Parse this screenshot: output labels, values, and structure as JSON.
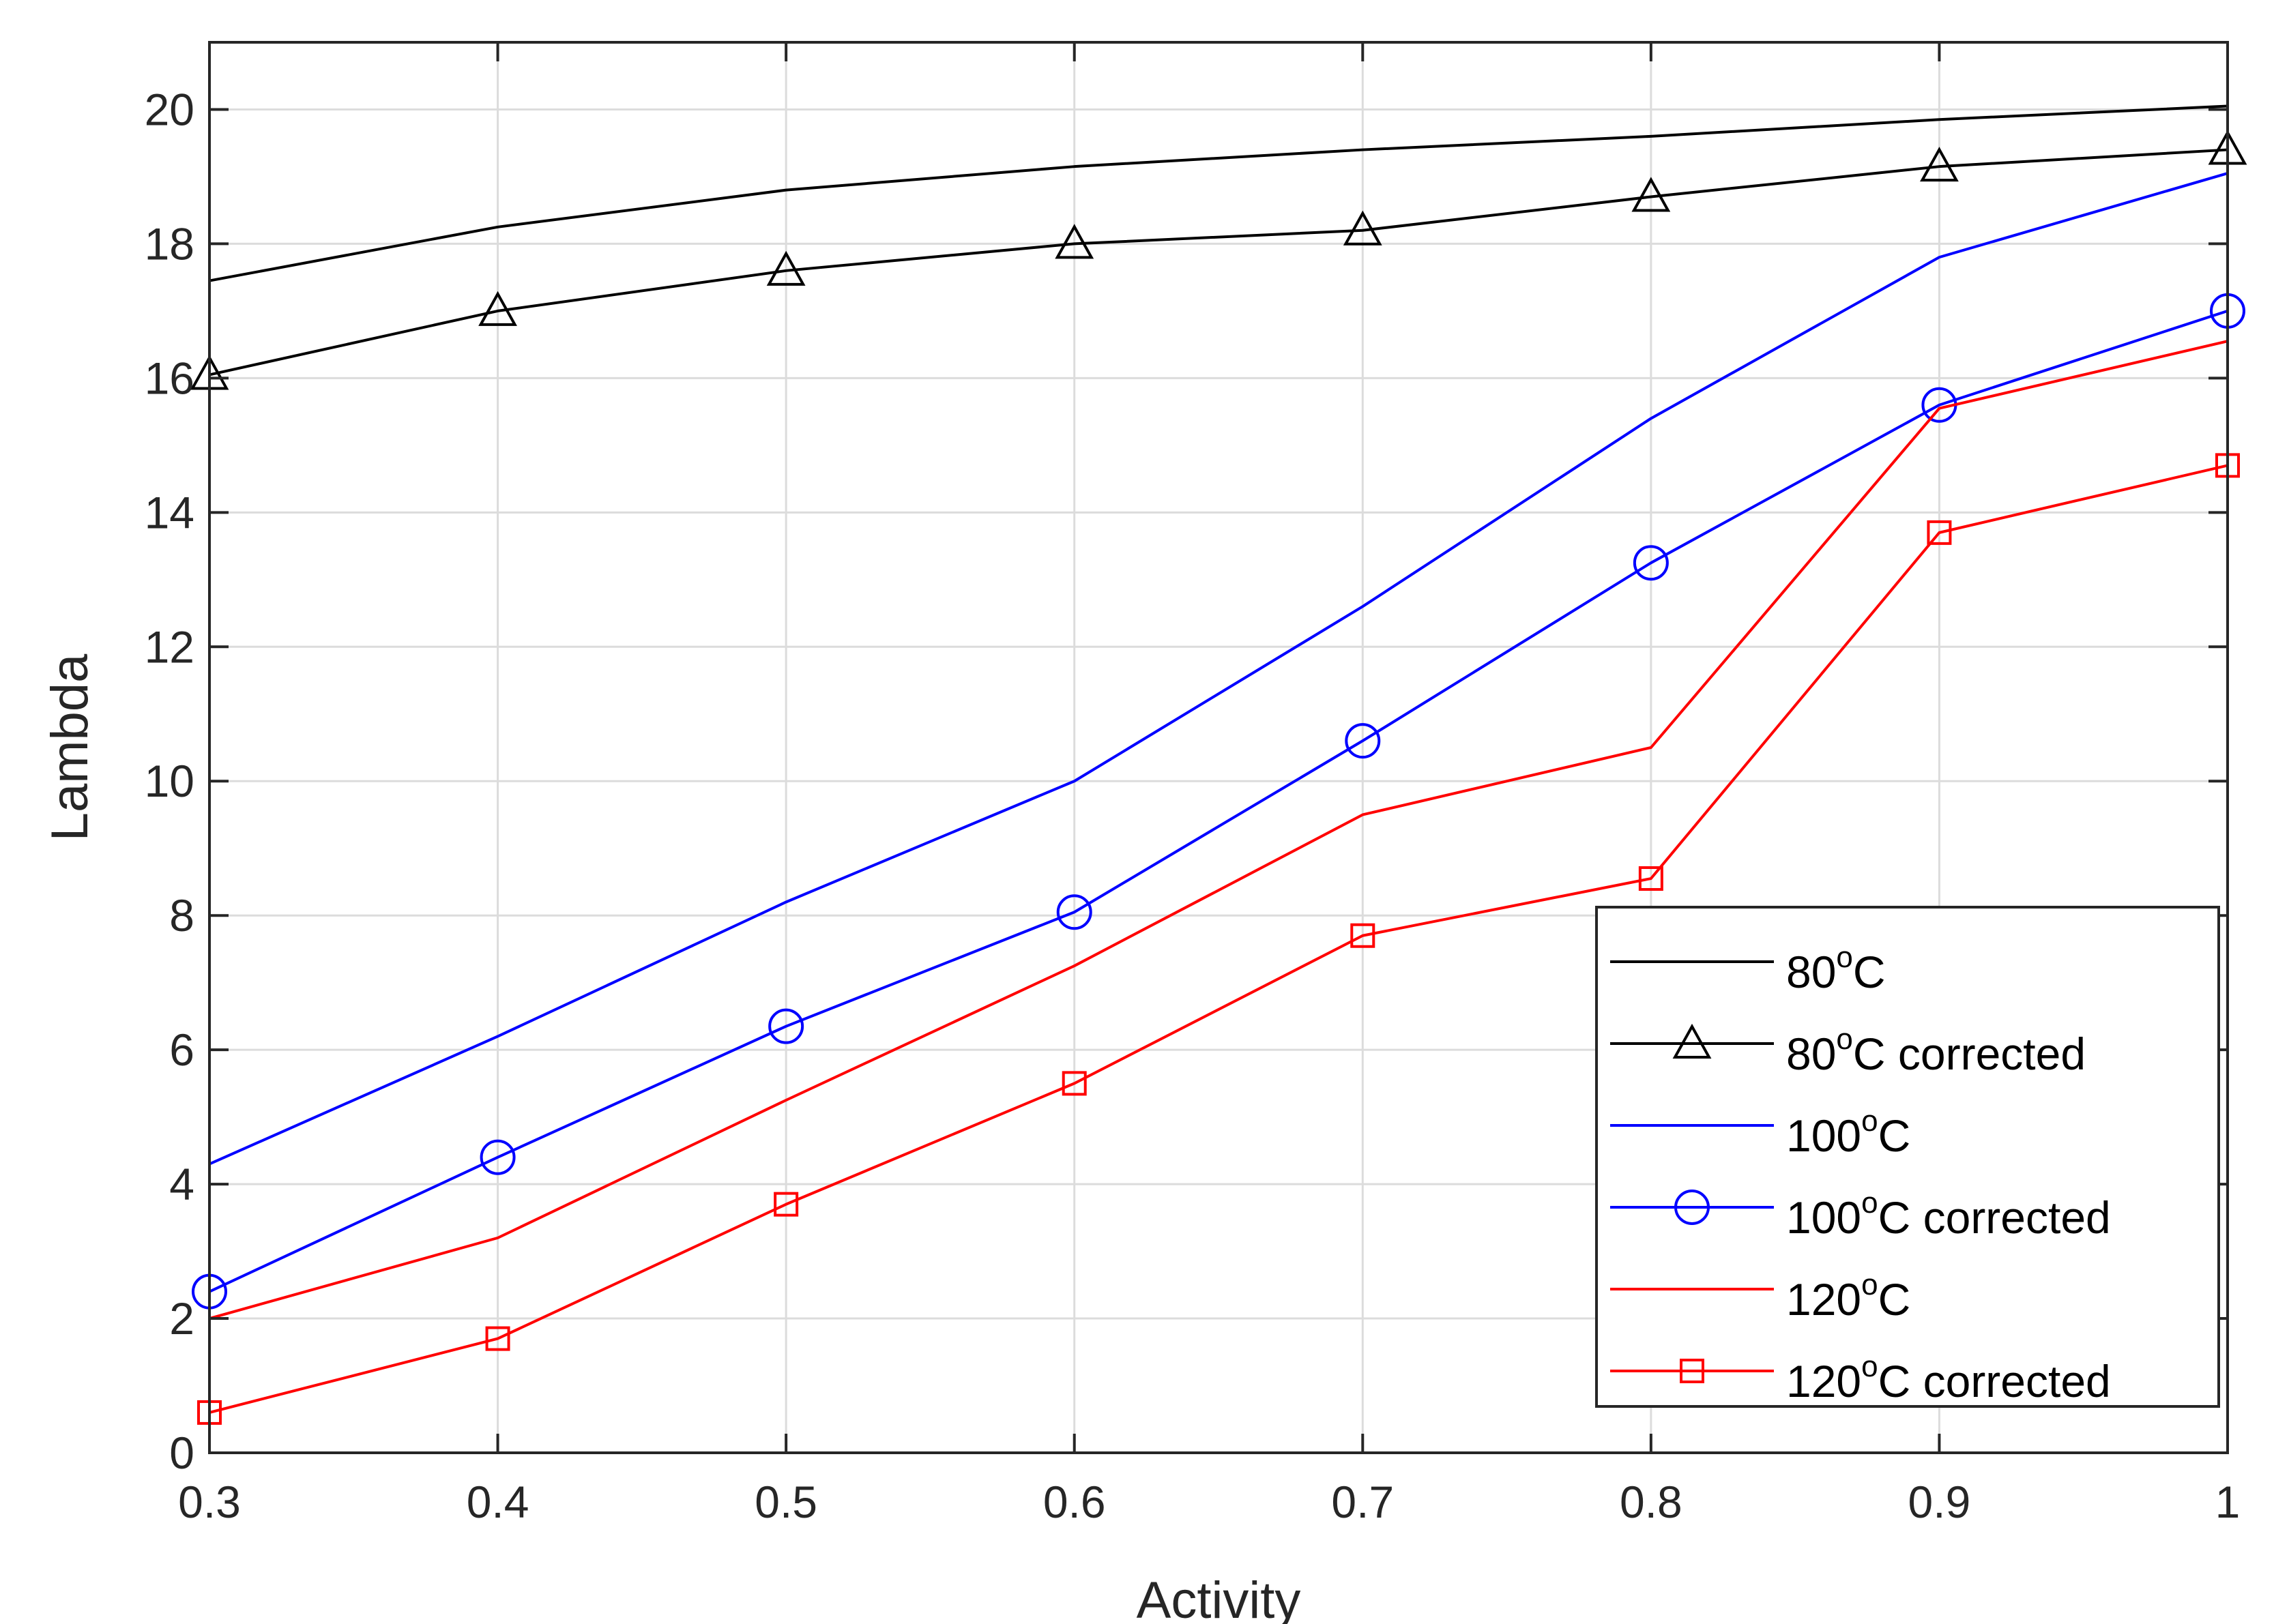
{
  "chart_data": {
    "type": "line",
    "title": "",
    "xlabel": "Activity",
    "ylabel": "Lambda",
    "xlim": [
      0.3,
      1.0
    ],
    "ylim": [
      0,
      21
    ],
    "grid": true,
    "legend_position": "bottom-right",
    "x": [
      0.3,
      0.4,
      0.5,
      0.6,
      0.7,
      0.8,
      0.9,
      1.0
    ],
    "xticks": [
      "0.3",
      "0.4",
      "0.5",
      "0.6",
      "0.7",
      "0.8",
      "0.9",
      "1"
    ],
    "yticks": [
      "0",
      "2",
      "4",
      "6",
      "8",
      "10",
      "12",
      "14",
      "16",
      "18",
      "20"
    ],
    "series": [
      {
        "name": "80",
        "sup": "o",
        "suffix": "C",
        "color": "#000000",
        "marker": "none",
        "values": [
          17.45,
          18.25,
          18.8,
          19.15,
          19.4,
          19.6,
          19.85,
          20.05
        ]
      },
      {
        "name": "80",
        "sup": "o",
        "suffix": "C corrected",
        "color": "#000000",
        "marker": "triangle",
        "values": [
          16.05,
          17.0,
          17.6,
          18.0,
          18.2,
          18.7,
          19.15,
          19.4
        ]
      },
      {
        "name": "100",
        "sup": "o",
        "suffix": "C",
        "color": "#0000ff",
        "marker": "none",
        "values": [
          4.3,
          6.2,
          8.2,
          10.0,
          12.6,
          15.4,
          17.8,
          19.05
        ]
      },
      {
        "name": "100",
        "sup": "o",
        "suffix": "C corrected",
        "color": "#0000ff",
        "marker": "circle",
        "values": [
          2.4,
          4.4,
          6.35,
          8.05,
          10.6,
          13.25,
          15.6,
          17.0
        ]
      },
      {
        "name": "120",
        "sup": "o",
        "suffix": "C",
        "color": "#ff0000",
        "marker": "none",
        "values": [
          2.0,
          3.2,
          5.25,
          7.25,
          9.5,
          10.5,
          15.55,
          16.55
        ]
      },
      {
        "name": "120",
        "sup": "o",
        "suffix": "C corrected",
        "color": "#ff0000",
        "marker": "square",
        "values": [
          0.6,
          1.7,
          3.7,
          5.5,
          7.7,
          8.55,
          13.7,
          14.7
        ]
      }
    ]
  }
}
